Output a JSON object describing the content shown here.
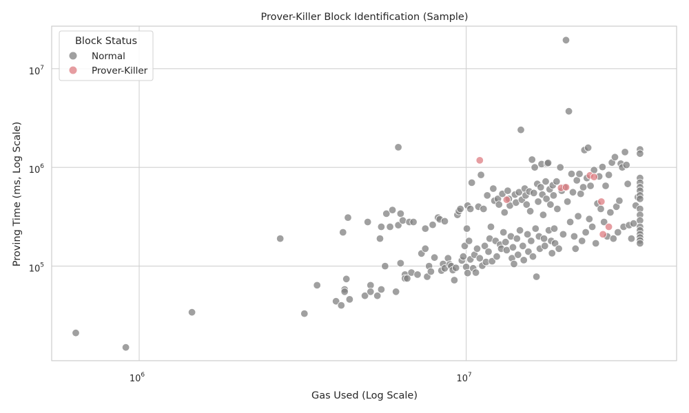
{
  "chart_data": {
    "type": "scatter",
    "title": "Prover-Killer Block Identification (Sample)",
    "xlabel": "Gas Used (Log Scale)",
    "ylabel": "Proving Time (ms, Log Scale)",
    "x_scale": "log",
    "y_scale": "log",
    "xlim": [
      540000,
      44000000
    ],
    "ylim": [
      11000,
      27000000
    ],
    "x_ticks": [
      {
        "value": 1000000,
        "base": "10",
        "exp": "6"
      },
      {
        "value": 10000000,
        "base": "10",
        "exp": "7"
      }
    ],
    "y_ticks": [
      {
        "value": 100000,
        "base": "10",
        "exp": "5"
      },
      {
        "value": 1000000,
        "base": "10",
        "exp": "6"
      },
      {
        "value": 10000000,
        "base": "10",
        "exp": "7"
      }
    ],
    "grid": true,
    "legend": {
      "title": "Block Status",
      "placement": "top-left"
    },
    "series": [
      {
        "name": "Normal",
        "color": "#808080",
        "points": [
          [
            640000,
            21000
          ],
          [
            910000,
            15000
          ],
          [
            1450000,
            34000
          ],
          [
            2700000,
            190000
          ],
          [
            3200000,
            33000
          ],
          [
            3500000,
            64000
          ],
          [
            4000000,
            44000
          ],
          [
            4150000,
            40000
          ],
          [
            4200000,
            220000
          ],
          [
            4250000,
            58000
          ],
          [
            4250000,
            55000
          ],
          [
            4300000,
            74000
          ],
          [
            4350000,
            310000
          ],
          [
            4400000,
            46000
          ],
          [
            4900000,
            50000
          ],
          [
            5000000,
            280000
          ],
          [
            5100000,
            64000
          ],
          [
            5100000,
            55000
          ],
          [
            5350000,
            50000
          ],
          [
            5450000,
            190000
          ],
          [
            5500000,
            250000
          ],
          [
            5500000,
            58000
          ],
          [
            5650000,
            100000
          ],
          [
            5700000,
            340000
          ],
          [
            5850000,
            250000
          ],
          [
            5950000,
            370000
          ],
          [
            6100000,
            55000
          ],
          [
            6200000,
            260000
          ],
          [
            6200000,
            1600000
          ],
          [
            6300000,
            340000
          ],
          [
            6300000,
            107000
          ],
          [
            6400000,
            290000
          ],
          [
            6500000,
            82000
          ],
          [
            6500000,
            75000
          ],
          [
            6600000,
            75000
          ],
          [
            6700000,
            280000
          ],
          [
            6800000,
            86000
          ],
          [
            6900000,
            280000
          ],
          [
            7100000,
            82000
          ],
          [
            7300000,
            134000
          ],
          [
            7500000,
            240000
          ],
          [
            7500000,
            150000
          ],
          [
            7600000,
            78000
          ],
          [
            7700000,
            100000
          ],
          [
            7800000,
            88000
          ],
          [
            7900000,
            262000
          ],
          [
            8000000,
            122000
          ],
          [
            8200000,
            310000
          ],
          [
            8300000,
            298000
          ],
          [
            8400000,
            90000
          ],
          [
            8500000,
            105000
          ],
          [
            8600000,
            285000
          ],
          [
            8600000,
            95000
          ],
          [
            8800000,
            120000
          ],
          [
            8900000,
            104000
          ],
          [
            9000000,
            100000
          ],
          [
            9100000,
            91000
          ],
          [
            9200000,
            72000
          ],
          [
            9300000,
            96000
          ],
          [
            9400000,
            330000
          ],
          [
            9500000,
            360000
          ],
          [
            9600000,
            380000
          ],
          [
            9700000,
            114000
          ],
          [
            9800000,
            125000
          ],
          [
            9900000,
            160000
          ],
          [
            10000000,
            98000
          ],
          [
            10050000,
            240000
          ],
          [
            10100000,
            410000
          ],
          [
            10100000,
            85000
          ],
          [
            10200000,
            180000
          ],
          [
            10300000,
            380000
          ],
          [
            10300000,
            117000
          ],
          [
            10400000,
            700000
          ],
          [
            10500000,
            95000
          ],
          [
            10600000,
            130000
          ],
          [
            10700000,
            86000
          ],
          [
            10800000,
            150000
          ],
          [
            10900000,
            400000
          ],
          [
            11000000,
            120000
          ],
          [
            11100000,
            840000
          ],
          [
            11200000,
            101000
          ],
          [
            11300000,
            380000
          ],
          [
            11400000,
            160000
          ],
          [
            11500000,
            110000
          ],
          [
            11600000,
            520000
          ],
          [
            11700000,
            140000
          ],
          [
            11800000,
            190000
          ],
          [
            11900000,
            250000
          ],
          [
            12000000,
            112000
          ],
          [
            12100000,
            610000
          ],
          [
            12200000,
            460000
          ],
          [
            12300000,
            180000
          ],
          [
            12400000,
            125000
          ],
          [
            12500000,
            480000
          ],
          [
            12600000,
            420000
          ],
          [
            12700000,
            165000
          ],
          [
            12800000,
            150000
          ],
          [
            12900000,
            540000
          ],
          [
            13000000,
            220000
          ],
          [
            13100000,
            350000
          ],
          [
            13200000,
            175000
          ],
          [
            13300000,
            145000
          ],
          [
            13400000,
            580000
          ],
          [
            13500000,
            480000
          ],
          [
            13600000,
            410000
          ],
          [
            13700000,
            200000
          ],
          [
            13800000,
            120000
          ],
          [
            13900000,
            155000
          ],
          [
            14000000,
            105000
          ],
          [
            14100000,
            530000
          ],
          [
            14200000,
            440000
          ],
          [
            14300000,
            190000
          ],
          [
            14400000,
            130000
          ],
          [
            14500000,
            560000
          ],
          [
            14600000,
            230000
          ],
          [
            14700000,
            2400000
          ],
          [
            14800000,
            470000
          ],
          [
            14900000,
            160000
          ],
          [
            15000000,
            115000
          ],
          [
            15100000,
            610000
          ],
          [
            15200000,
            520000
          ],
          [
            15300000,
            420000
          ],
          [
            15400000,
            210000
          ],
          [
            15500000,
            140000
          ],
          [
            15600000,
            570000
          ],
          [
            15700000,
            360000
          ],
          [
            15800000,
            180000
          ],
          [
            15900000,
            1200000
          ],
          [
            16000000,
            125000
          ],
          [
            16100000,
            550000
          ],
          [
            16200000,
            1000000
          ],
          [
            16300000,
            240000
          ],
          [
            16400000,
            78000
          ],
          [
            16500000,
            680000
          ],
          [
            16600000,
            450000
          ],
          [
            16700000,
            200000
          ],
          [
            16800000,
            150000
          ],
          [
            16900000,
            630000
          ],
          [
            17000000,
            1080000
          ],
          [
            17100000,
            530000
          ],
          [
            17200000,
            330000
          ],
          [
            17300000,
            190000
          ],
          [
            17400000,
            160000
          ],
          [
            17500000,
            720000
          ],
          [
            17600000,
            480000
          ],
          [
            17700000,
            1090000
          ],
          [
            17800000,
            1110000
          ],
          [
            17900000,
            230000
          ],
          [
            18000000,
            600000
          ],
          [
            18100000,
            420000
          ],
          [
            18200000,
            180000
          ],
          [
            18300000,
            135000
          ],
          [
            18400000,
            660000
          ],
          [
            18500000,
            520000
          ],
          [
            18600000,
            240000
          ],
          [
            18700000,
            170000
          ],
          [
            18900000,
            720000
          ],
          [
            19000000,
            380000
          ],
          [
            19200000,
            150000
          ],
          [
            19400000,
            1000000
          ],
          [
            19600000,
            580000
          ],
          [
            19800000,
            210000
          ],
          [
            20000000,
            630000
          ],
          [
            20200000,
            19500000
          ],
          [
            20400000,
            450000
          ],
          [
            20600000,
            3700000
          ],
          [
            20800000,
            280000
          ],
          [
            21000000,
            860000
          ],
          [
            21200000,
            560000
          ],
          [
            21400000,
            200000
          ],
          [
            21600000,
            150000
          ],
          [
            21800000,
            740000
          ],
          [
            22000000,
            320000
          ],
          [
            22200000,
            860000
          ],
          [
            22400000,
            540000
          ],
          [
            22600000,
            180000
          ],
          [
            22800000,
            630000
          ],
          [
            23000000,
            1500000
          ],
          [
            23200000,
            220000
          ],
          [
            23400000,
            780000
          ],
          [
            23600000,
            1580000
          ],
          [
            23800000,
            300000
          ],
          [
            24000000,
            650000
          ],
          [
            24300000,
            250000
          ],
          [
            24600000,
            940000
          ],
          [
            24900000,
            170000
          ],
          [
            25200000,
            430000
          ],
          [
            25500000,
            810000
          ],
          [
            25800000,
            380000
          ],
          [
            26100000,
            1010000
          ],
          [
            26400000,
            280000
          ],
          [
            26700000,
            650000
          ],
          [
            27000000,
            200000
          ],
          [
            27300000,
            840000
          ],
          [
            27600000,
            350000
          ],
          [
            27900000,
            1120000
          ],
          [
            28200000,
            190000
          ],
          [
            28500000,
            1270000
          ],
          [
            28800000,
            400000
          ],
          [
            29100000,
            220000
          ],
          [
            29400000,
            460000
          ],
          [
            29700000,
            1090000
          ],
          [
            30000000,
            1000000
          ],
          [
            30300000,
            250000
          ],
          [
            30600000,
            1430000
          ],
          [
            30900000,
            1060000
          ],
          [
            31200000,
            680000
          ],
          [
            31500000,
            260000
          ],
          [
            32000000,
            190000
          ],
          [
            32500000,
            270000
          ],
          [
            33000000,
            410000
          ],
          [
            33500000,
            500000
          ],
          [
            34000000,
            1520000
          ],
          [
            34000000,
            1380000
          ],
          [
            34000000,
            780000
          ],
          [
            34000000,
            700000
          ],
          [
            34000000,
            630000
          ],
          [
            34000000,
            580000
          ],
          [
            34000000,
            520000
          ],
          [
            34000000,
            480000
          ],
          [
            34000000,
            380000
          ],
          [
            34000000,
            330000
          ],
          [
            34000000,
            290000
          ],
          [
            34000000,
            250000
          ],
          [
            34000000,
            230000
          ],
          [
            34000000,
            210000
          ],
          [
            34000000,
            195000
          ],
          [
            34000000,
            182000
          ],
          [
            34000000,
            170000
          ]
        ]
      },
      {
        "name": "Prover-Killer",
        "color": "#dd7c82",
        "points": [
          [
            11000000,
            1180000
          ],
          [
            13300000,
            470000
          ],
          [
            19500000,
            620000
          ],
          [
            20200000,
            630000
          ],
          [
            23900000,
            830000
          ],
          [
            24600000,
            800000
          ],
          [
            25900000,
            450000
          ],
          [
            26200000,
            210000
          ],
          [
            27300000,
            250000
          ]
        ]
      }
    ]
  }
}
